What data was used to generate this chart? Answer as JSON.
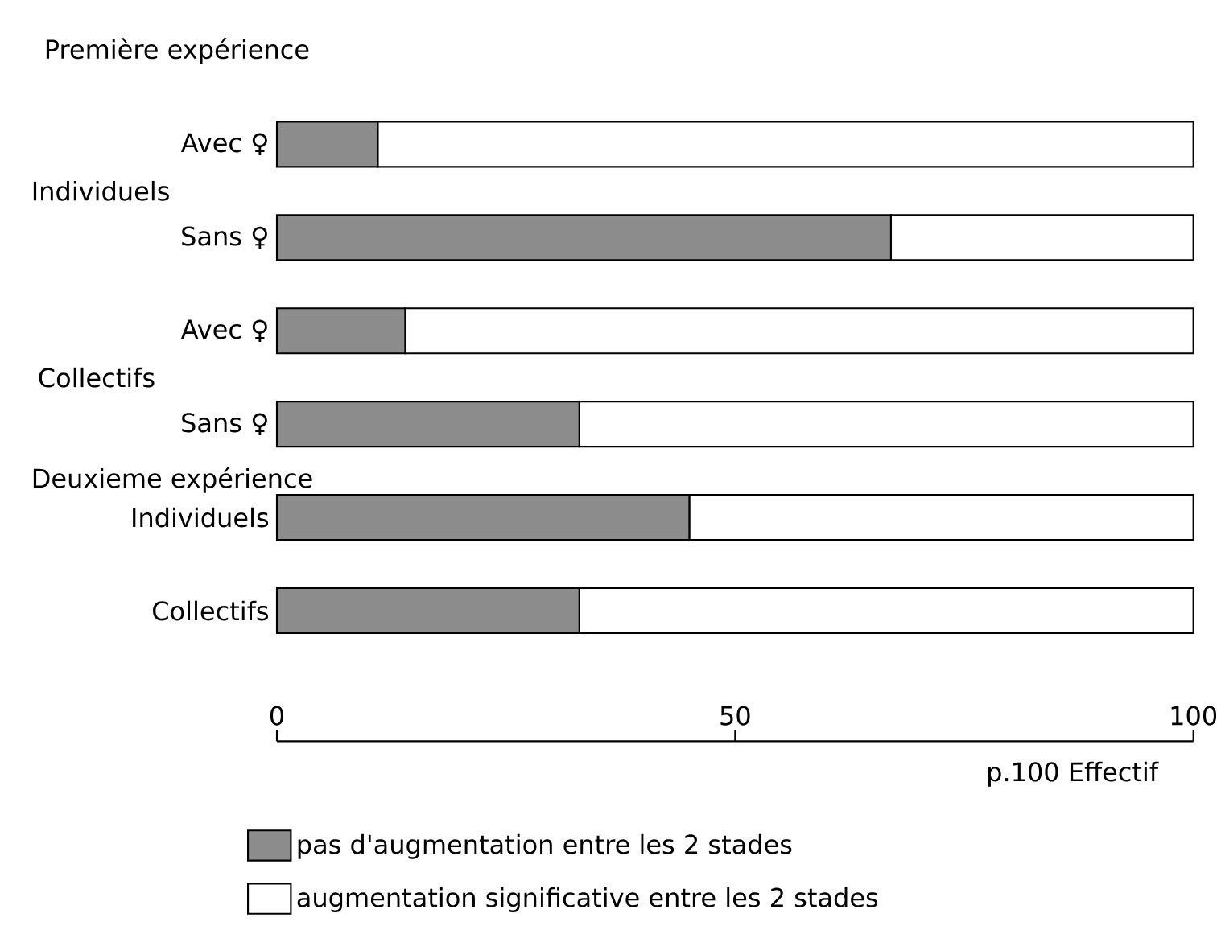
{
  "chart_data": {
    "type": "bar",
    "orientation": "horizontal",
    "stacked": true,
    "categories": [
      "Avec ♀",
      "Sans ♀",
      "Avec ♀",
      "Sans ♀",
      "Individuels",
      "Collectifs"
    ],
    "series": [
      {
        "name": "pas d'augmentation entre les 2 stades",
        "color": "#8c8c8c",
        "values": [
          11,
          67,
          14,
          33,
          45,
          33
        ]
      },
      {
        "name": "augmentation significative entre les 2 stades",
        "color": "#ffffff",
        "values": [
          89,
          33,
          86,
          67,
          55,
          67
        ]
      }
    ],
    "xlim": [
      0,
      100
    ],
    "xticks": [
      0,
      50,
      100
    ],
    "xlabel": "p.100 Effectif",
    "annotations": [
      "Première expérience",
      "Individuels",
      "Collectifs",
      "Deuxieme expérience"
    ],
    "legend": "bottom",
    "grid": false
  }
}
